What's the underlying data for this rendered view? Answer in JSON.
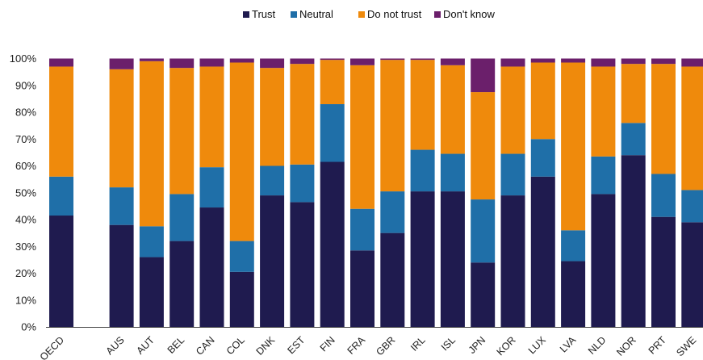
{
  "chart_data": {
    "type": "bar",
    "stacked": true,
    "categories": [
      "OECD",
      "",
      "AUS",
      "AUT",
      "BEL",
      "CAN",
      "COL",
      "DNK",
      "EST",
      "FIN",
      "FRA",
      "GBR",
      "IRL",
      "ISL",
      "JPN",
      "KOR",
      "LUX",
      "LVA",
      "NLD",
      "NOR",
      "PRT",
      "SWE"
    ],
    "series": [
      {
        "name": "Trust",
        "color": "#1f1b4f",
        "values": [
          41.5,
          null,
          38,
          26,
          32,
          44.5,
          20.5,
          49,
          46.5,
          61.5,
          28.5,
          35,
          50.5,
          50.5,
          24,
          49,
          56,
          24.5,
          49.5,
          64,
          41,
          39
        ]
      },
      {
        "name": "Neutral",
        "color": "#1f6fa8",
        "values": [
          14.5,
          null,
          14,
          11.5,
          17.5,
          15,
          11.5,
          11,
          14,
          21.5,
          15.5,
          15.5,
          15.5,
          14,
          23.5,
          15.5,
          14,
          11.5,
          14,
          12,
          16,
          12
        ]
      },
      {
        "name": "Do not trust",
        "color": "#ef8a0c",
        "values": [
          41,
          null,
          44,
          61.5,
          47,
          37.5,
          66.5,
          36.5,
          37.5,
          16.5,
          53.5,
          49,
          33.5,
          33,
          40,
          32.5,
          28.5,
          62.5,
          33.5,
          22,
          41,
          46
        ]
      },
      {
        "name": "Don't know",
        "color": "#6b1f6b",
        "values": [
          3,
          null,
          4,
          1,
          3.5,
          3,
          1.5,
          3.5,
          2,
          0.5,
          2.5,
          0.5,
          0.5,
          2.5,
          12.5,
          3,
          1.5,
          1.5,
          3,
          2,
          2,
          3
        ]
      }
    ],
    "yticks": [
      "0%",
      "10%",
      "20%",
      "30%",
      "40%",
      "50%",
      "60%",
      "70%",
      "80%",
      "90%",
      "100%"
    ],
    "ylim": [
      0,
      100
    ],
    "legend_position": "top-center",
    "grid": false
  }
}
